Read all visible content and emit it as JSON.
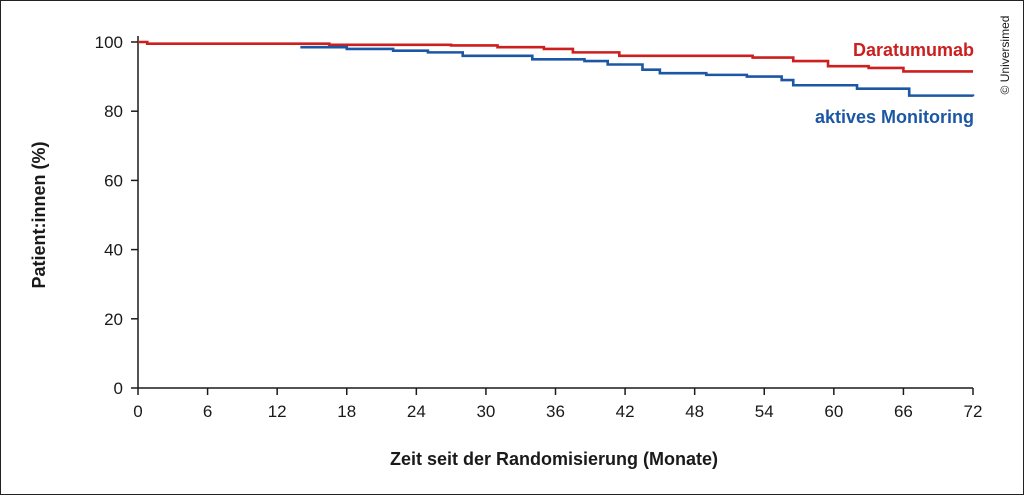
{
  "chart_data": {
    "type": "line",
    "xlabel": "Zeit seit der Randomisierung (Monate)",
    "ylabel": "Patient:innen (%)",
    "xlim": [
      0,
      72
    ],
    "ylim": [
      0,
      100
    ],
    "x_ticks": [
      0,
      6,
      12,
      18,
      24,
      30,
      36,
      42,
      48,
      54,
      60,
      66,
      72
    ],
    "y_ticks": [
      0,
      20,
      40,
      60,
      80,
      100
    ],
    "grid": false,
    "series": [
      {
        "name": "Daratumumab",
        "color": "#cc1f1f",
        "step": true,
        "points": [
          [
            0,
            100
          ],
          [
            0.8,
            99.5
          ],
          [
            16.5,
            99.2
          ],
          [
            27,
            99
          ],
          [
            31,
            98.5
          ],
          [
            35,
            98
          ],
          [
            37.5,
            97
          ],
          [
            41.5,
            96
          ],
          [
            53,
            95.5
          ],
          [
            56.5,
            94.5
          ],
          [
            59.5,
            93
          ],
          [
            63,
            92.5
          ],
          [
            66,
            91.5
          ],
          [
            72,
            91.5
          ]
        ]
      },
      {
        "name": "aktives Monitoring",
        "color": "#1c57a5",
        "step": true,
        "points": [
          [
            14,
            98.5
          ],
          [
            18,
            98
          ],
          [
            22,
            97.5
          ],
          [
            25,
            97
          ],
          [
            28,
            96
          ],
          [
            34,
            95
          ],
          [
            38.5,
            94.5
          ],
          [
            40.5,
            93.5
          ],
          [
            43.5,
            92
          ],
          [
            45,
            91
          ],
          [
            49,
            90.5
          ],
          [
            52.5,
            90
          ],
          [
            55.5,
            89
          ],
          [
            56.5,
            87.5
          ],
          [
            62,
            86.5
          ],
          [
            66.5,
            84.5
          ],
          [
            72,
            84.3
          ]
        ]
      }
    ]
  },
  "copyright": "© Universimed"
}
